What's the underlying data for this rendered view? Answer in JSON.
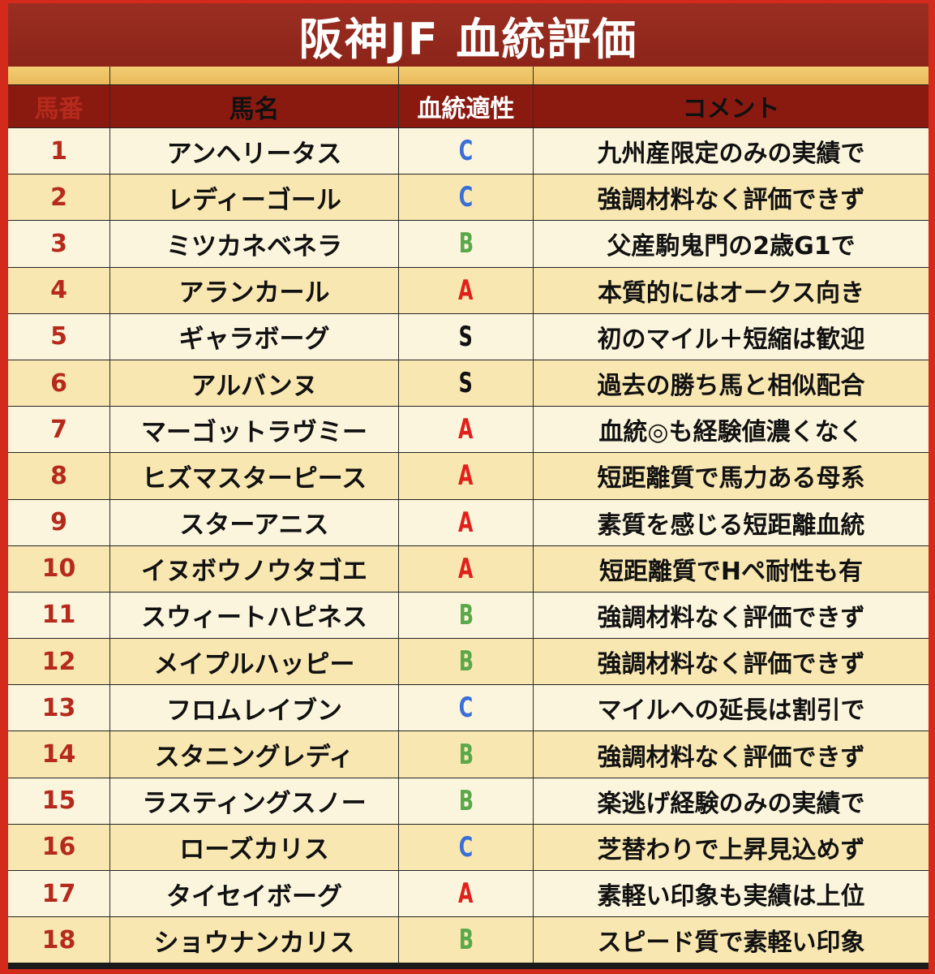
{
  "title": "阪神JF 血統評価",
  "headers": {
    "num": "馬番",
    "name": "馬名",
    "rating": "血統適性",
    "comment": "コメント"
  },
  "rating_colors": {
    "S": "#111111",
    "A": "#e0201a",
    "B": "#5aa84a",
    "C": "#3a6fd8"
  },
  "rows": [
    {
      "num": "1",
      "name": "アンヘリータス",
      "rating": "C",
      "comment": "九州産限定のみの実績で"
    },
    {
      "num": "2",
      "name": "レディーゴール",
      "rating": "C",
      "comment": "強調材料なく評価できず"
    },
    {
      "num": "3",
      "name": "ミツカネベネラ",
      "rating": "B",
      "comment": "父産駒鬼門の2歳G1で"
    },
    {
      "num": "4",
      "name": "アランカール",
      "rating": "A",
      "comment": "本質的にはオークス向き"
    },
    {
      "num": "5",
      "name": "ギャラボーグ",
      "rating": "S",
      "comment": "初のマイル＋短縮は歓迎"
    },
    {
      "num": "6",
      "name": "アルバンヌ",
      "rating": "S",
      "comment": "過去の勝ち馬と相似配合"
    },
    {
      "num": "7",
      "name": "マーゴットラヴミー",
      "rating": "A",
      "comment": "血統◎も経験値濃くなく"
    },
    {
      "num": "8",
      "name": "ヒズマスターピース",
      "rating": "A",
      "comment": "短距離質で馬力ある母系"
    },
    {
      "num": "9",
      "name": "スターアニス",
      "rating": "A",
      "comment": "素質を感じる短距離血統"
    },
    {
      "num": "10",
      "name": "イヌボウノウタゴエ",
      "rating": "A",
      "comment": "短距離質でHペ耐性も有"
    },
    {
      "num": "11",
      "name": "スウィートハピネス",
      "rating": "B",
      "comment": "強調材料なく評価できず"
    },
    {
      "num": "12",
      "name": "メイプルハッピー",
      "rating": "B",
      "comment": "強調材料なく評価できず"
    },
    {
      "num": "13",
      "name": "フロムレイブン",
      "rating": "C",
      "comment": "マイルへの延長は割引で"
    },
    {
      "num": "14",
      "name": "スタニングレディ",
      "rating": "B",
      "comment": "強調材料なく評価できず"
    },
    {
      "num": "15",
      "name": "ラスティングスノー",
      "rating": "B",
      "comment": "楽逃げ経験のみの実績で"
    },
    {
      "num": "16",
      "name": "ローズカリス",
      "rating": "C",
      "comment": "芝替わりで上昇見込めず"
    },
    {
      "num": "17",
      "name": "タイセイボーグ",
      "rating": "A",
      "comment": "素軽い印象も実績は上位"
    },
    {
      "num": "18",
      "name": "ショウナンカリス",
      "rating": "B",
      "comment": "スピード質で素軽い印象"
    }
  ]
}
